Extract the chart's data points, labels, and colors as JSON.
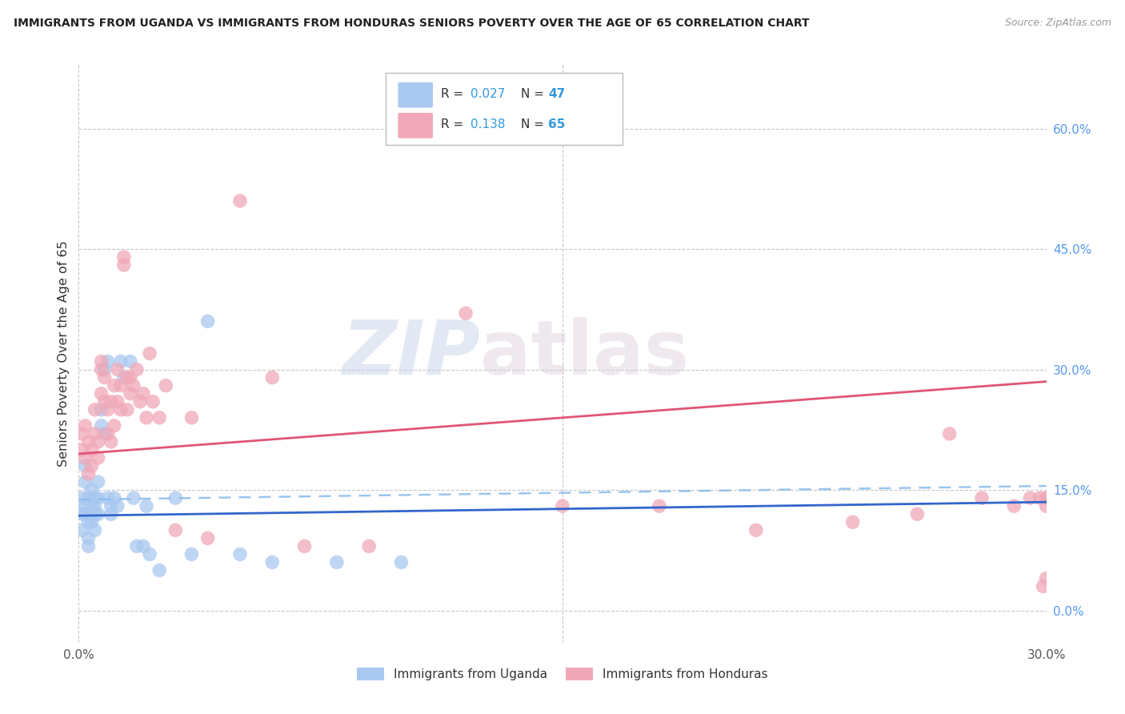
{
  "title": "IMMIGRANTS FROM UGANDA VS IMMIGRANTS FROM HONDURAS SENIORS POVERTY OVER THE AGE OF 65 CORRELATION CHART",
  "source": "Source: ZipAtlas.com",
  "ylabel": "Seniors Poverty Over the Age of 65",
  "right_ytick_labels": [
    "0.0%",
    "15.0%",
    "30.0%",
    "45.0%",
    "60.0%"
  ],
  "right_ytick_vals": [
    0.0,
    0.15,
    0.3,
    0.45,
    0.6
  ],
  "xlim": [
    0.0,
    0.3
  ],
  "ylim": [
    -0.04,
    0.68
  ],
  "color_uganda": "#a8c8f0",
  "color_honduras": "#f0a8b8",
  "color_line_uganda": "#3366cc",
  "color_line_honduras": "#e05575",
  "color_dashed": "#88bbee",
  "watermark_zip": "ZIP",
  "watermark_atlas": "atlas",
  "uganda_line_x0": 0.0,
  "uganda_line_y0": 0.118,
  "uganda_line_x1": 0.3,
  "uganda_line_y1": 0.135,
  "honduras_line_x0": 0.0,
  "honduras_line_y0": 0.195,
  "honduras_line_x1": 0.3,
  "honduras_line_y1": 0.285,
  "dashed_line_x0": 0.0,
  "dashed_line_y0": 0.138,
  "dashed_line_x1": 0.3,
  "dashed_line_y1": 0.155,
  "legend_r_uganda": "0.027",
  "legend_n_uganda": "47",
  "legend_r_honduras": "0.138",
  "legend_n_honduras": "65",
  "uganda_x": [
    0.001,
    0.001,
    0.001,
    0.002,
    0.002,
    0.002,
    0.002,
    0.003,
    0.003,
    0.003,
    0.003,
    0.004,
    0.004,
    0.004,
    0.005,
    0.005,
    0.005,
    0.005,
    0.006,
    0.006,
    0.006,
    0.007,
    0.007,
    0.008,
    0.008,
    0.009,
    0.009,
    0.01,
    0.01,
    0.011,
    0.012,
    0.013,
    0.014,
    0.016,
    0.017,
    0.018,
    0.02,
    0.021,
    0.022,
    0.025,
    0.03,
    0.035,
    0.04,
    0.05,
    0.06,
    0.08,
    0.1
  ],
  "uganda_y": [
    0.12,
    0.14,
    0.1,
    0.13,
    0.12,
    0.16,
    0.18,
    0.11,
    0.14,
    0.08,
    0.09,
    0.13,
    0.11,
    0.15,
    0.14,
    0.13,
    0.12,
    0.1,
    0.16,
    0.14,
    0.12,
    0.25,
    0.23,
    0.22,
    0.3,
    0.14,
    0.31,
    0.13,
    0.12,
    0.14,
    0.13,
    0.31,
    0.29,
    0.31,
    0.14,
    0.08,
    0.08,
    0.13,
    0.07,
    0.05,
    0.14,
    0.07,
    0.36,
    0.07,
    0.06,
    0.06,
    0.06
  ],
  "honduras_x": [
    0.001,
    0.001,
    0.002,
    0.002,
    0.003,
    0.003,
    0.004,
    0.004,
    0.005,
    0.005,
    0.006,
    0.006,
    0.007,
    0.007,
    0.007,
    0.008,
    0.008,
    0.009,
    0.009,
    0.01,
    0.01,
    0.011,
    0.011,
    0.012,
    0.012,
    0.013,
    0.013,
    0.014,
    0.014,
    0.015,
    0.015,
    0.016,
    0.016,
    0.017,
    0.018,
    0.019,
    0.02,
    0.021,
    0.022,
    0.023,
    0.025,
    0.027,
    0.03,
    0.035,
    0.04,
    0.05,
    0.06,
    0.07,
    0.09,
    0.12,
    0.15,
    0.18,
    0.21,
    0.24,
    0.26,
    0.27,
    0.28,
    0.29,
    0.295,
    0.298,
    0.299,
    0.3,
    0.3,
    0.3,
    0.3
  ],
  "honduras_y": [
    0.2,
    0.22,
    0.19,
    0.23,
    0.17,
    0.21,
    0.2,
    0.18,
    0.22,
    0.25,
    0.21,
    0.19,
    0.3,
    0.27,
    0.31,
    0.29,
    0.26,
    0.25,
    0.22,
    0.26,
    0.21,
    0.28,
    0.23,
    0.26,
    0.3,
    0.25,
    0.28,
    0.43,
    0.44,
    0.25,
    0.29,
    0.29,
    0.27,
    0.28,
    0.3,
    0.26,
    0.27,
    0.24,
    0.32,
    0.26,
    0.24,
    0.28,
    0.1,
    0.24,
    0.09,
    0.51,
    0.29,
    0.08,
    0.08,
    0.37,
    0.13,
    0.13,
    0.1,
    0.11,
    0.12,
    0.22,
    0.14,
    0.13,
    0.14,
    0.14,
    0.03,
    0.13,
    0.14,
    0.14,
    0.04
  ]
}
